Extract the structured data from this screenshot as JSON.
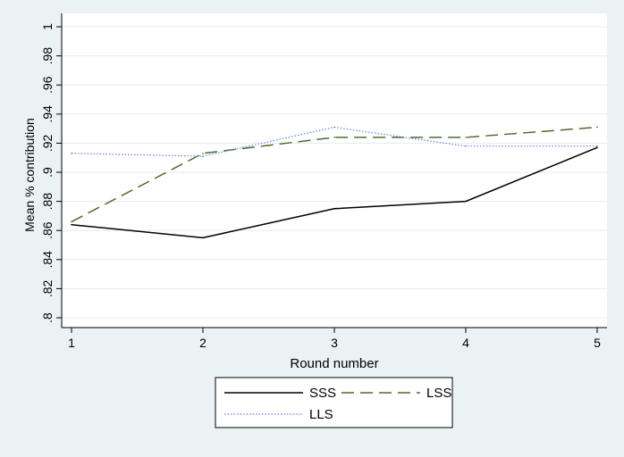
{
  "chart_data": {
    "type": "line",
    "x": [
      1,
      2,
      3,
      4,
      5
    ],
    "xlabel": "Round number",
    "ylabel": "Mean % contribution",
    "xlim": [
      1,
      5
    ],
    "ylim": [
      0.8,
      1.0
    ],
    "xticks": [
      1,
      2,
      3,
      4,
      5
    ],
    "xtick_labels": [
      "1",
      "2",
      "3",
      "4",
      "5"
    ],
    "yticks": [
      0.8,
      0.82,
      0.84,
      0.86,
      0.88,
      0.9,
      0.92,
      0.94,
      0.96,
      0.98,
      1.0
    ],
    "ytick_labels": [
      ".8",
      ".82",
      ".84",
      ".86",
      ".88",
      ".9",
      ".92",
      ".94",
      ".96",
      ".98",
      "1"
    ],
    "grid": "horizontal",
    "legend_position": "bottom",
    "series": [
      {
        "name": "SSS",
        "values": [
          0.864,
          0.855,
          0.875,
          0.88,
          0.917
        ],
        "color": "#000000",
        "style": "solid"
      },
      {
        "name": "LSS",
        "values": [
          0.866,
          0.913,
          0.924,
          0.924,
          0.931
        ],
        "color": "#4f6b2f",
        "style": "dashed"
      },
      {
        "name": "LLS",
        "values": [
          0.913,
          0.911,
          0.931,
          0.918,
          0.918
        ],
        "color": "#6a7fd6",
        "style": "dotted"
      }
    ],
    "background_color": "#eaf2f3",
    "plot_background": "#ffffff",
    "grid_color": "#e6ecef"
  }
}
